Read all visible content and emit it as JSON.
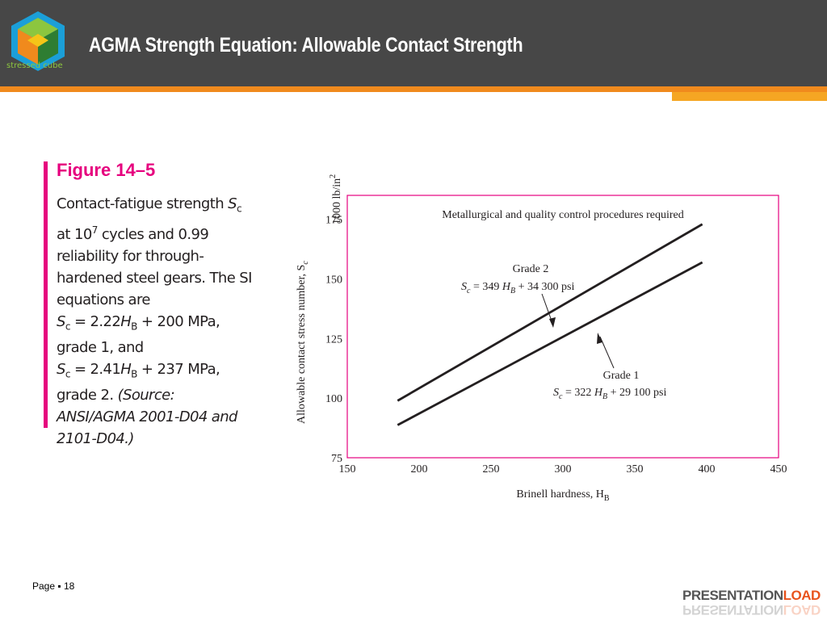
{
  "slide": {
    "title": "AGMA Strength Equation: Allowable Contact Strength",
    "logo_text": "stressed cube",
    "page_label": "Page",
    "page_bullet": "▪",
    "page_number": "18",
    "brand_part1": "PRESENTATION",
    "brand_part2": "LOAD"
  },
  "figure": {
    "label": "Figure 14–5",
    "caption_lines": [
      "Contact-fatigue strength S",
      "at 10",
      "reliability for through-",
      "hardened steel gears. The SI",
      "equations are",
      "= 2.22H",
      "grade 1, and",
      "= 2.41H",
      "grade 2. (Source:",
      "ANSI/AGMA 2001-D04 and",
      "2101-D04.)"
    ],
    "caption": {
      "l1a": "Contact-fatigue strength ",
      "l1b": "S",
      "l1c": "c",
      "l2a": "at 10",
      "l2b": "7",
      "l2c": " cycles and 0.99",
      "l3": "reliability for through-",
      "l4": "hardened steel gears. The SI",
      "l5": "equations are",
      "l6a": "S",
      "l6b": "c",
      "l6c": " = 2.22",
      "l6d": "H",
      "l6e": "B",
      "l6f": " + 200 MPa,",
      "l7": "grade 1, and",
      "l8a": "S",
      "l8b": "c",
      "l8c": " = 2.41",
      "l8d": "H",
      "l8e": "B",
      "l8f": " + 237 MPa,",
      "l9a": "grade 2. ",
      "l9b": "(Source:",
      "l10": "ANSI/AGMA 2001-D04 and",
      "l11": "2101-D04.)"
    }
  },
  "chart_data": {
    "type": "line",
    "title": "Metallurgical and quality control procedures required",
    "xlabel": "Brinell hardness, H",
    "xlabel_sub": "B",
    "ylabel": "Allowable contact stress number, S",
    "ylabel_sub": "c",
    "yunit": "1000 lb/in",
    "yunit_sup": "2",
    "xlim": [
      150,
      450
    ],
    "ylim": [
      75,
      185
    ],
    "xticks": [
      150,
      200,
      250,
      300,
      350,
      400,
      450
    ],
    "yticks": [
      75,
      100,
      125,
      150,
      175
    ],
    "grid": false,
    "frame_color": "#e6007e",
    "line_color": "#231f20",
    "series": [
      {
        "name": "Grade 2",
        "equation": "S",
        "equation_parts": [
          "S",
          "c",
          " = 349 ",
          "H",
          "B",
          " + 34 300 psi"
        ],
        "x": [
          185,
          397
        ],
        "y": [
          98.9,
          172.9
        ]
      },
      {
        "name": "Grade 1",
        "equation_parts": [
          "S",
          "c",
          " = 322 ",
          "H",
          "B",
          " + 29 100 psi"
        ],
        "x": [
          185,
          397
        ],
        "y": [
          88.7,
          156.9
        ]
      }
    ]
  }
}
